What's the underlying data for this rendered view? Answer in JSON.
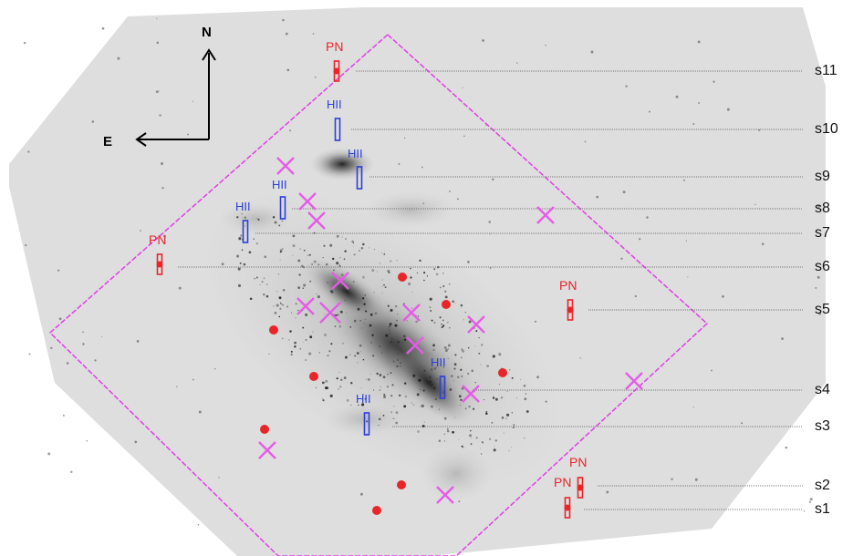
{
  "compass": {
    "north": "N",
    "east": "E"
  },
  "labels": {
    "pn": "PN",
    "hii": "HII"
  },
  "slits": [
    "s11",
    "s10",
    "s9",
    "s8",
    "s7",
    "s6",
    "s5",
    "s4",
    "s3",
    "s2",
    "s1"
  ],
  "colors": {
    "pn": "#e8262a",
    "hii": "#2b3fd6",
    "field": "#e23ee6",
    "cross": "#e65be8",
    "leader": "#555555",
    "background": "#dcdcdc"
  }
}
